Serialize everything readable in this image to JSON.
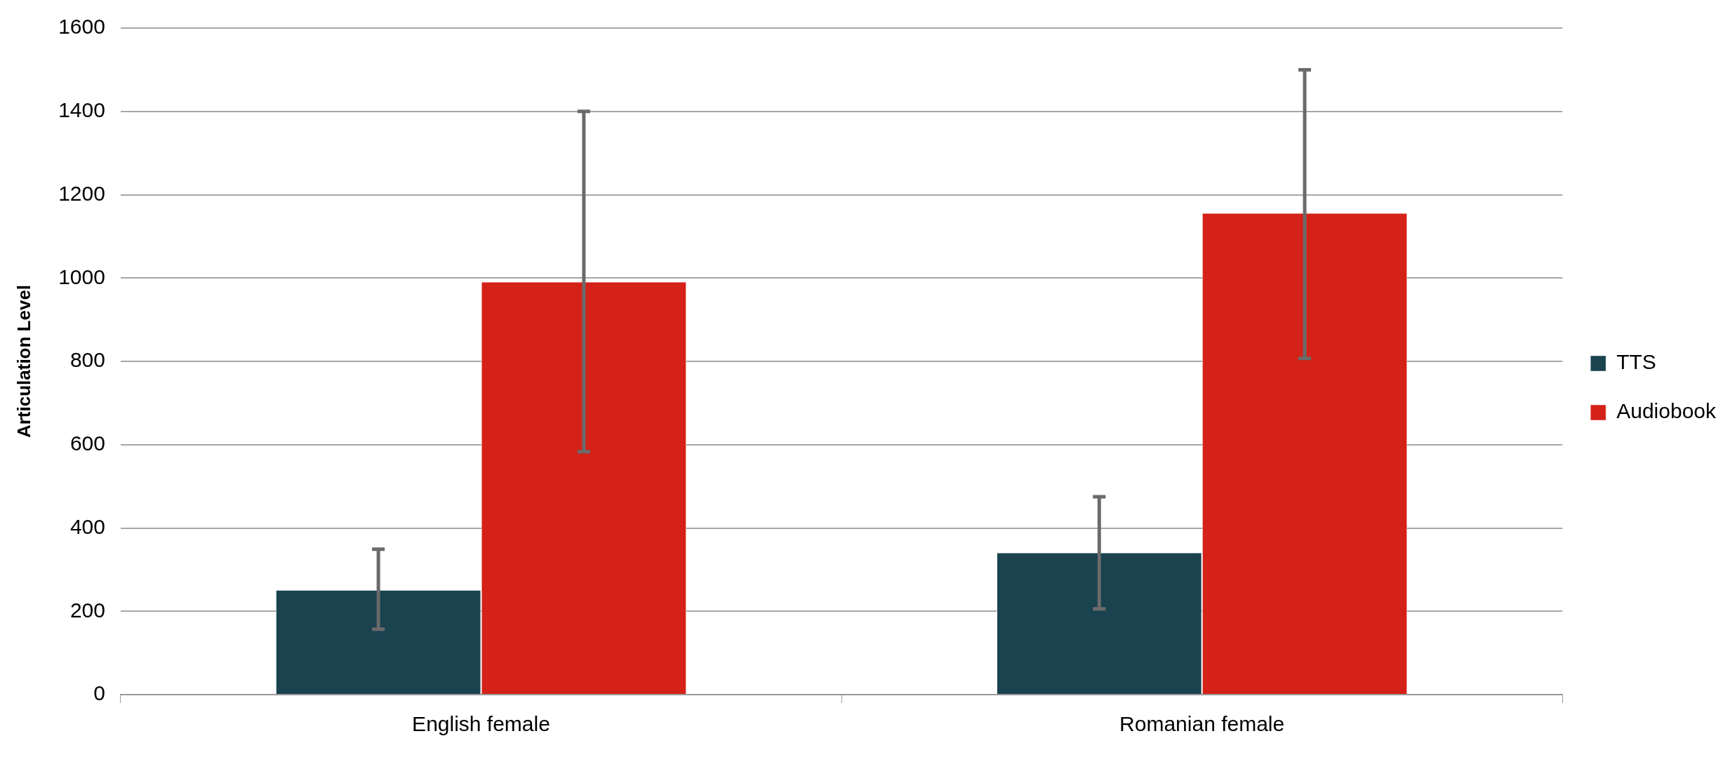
{
  "chart_data": {
    "type": "bar",
    "ylabel": "Articulation Level",
    "categories": [
      "English female",
      "Romanian female"
    ],
    "series": [
      {
        "name": "TTS",
        "color": "#1a424f",
        "values": [
          250,
          340
        ],
        "errors": [
          [
            157,
            349
          ],
          [
            206,
            475
          ]
        ]
      },
      {
        "name": "Audiobook",
        "color": "#d42218",
        "values": [
          990,
          1155
        ],
        "errors": [
          [
            583,
            1400
          ],
          [
            807,
            1500
          ]
        ]
      }
    ],
    "ylim": [
      0,
      1600
    ],
    "yticks": [
      0,
      200,
      400,
      600,
      800,
      1000,
      1200,
      1400,
      1600
    ],
    "grid": "y",
    "legend": "right"
  }
}
